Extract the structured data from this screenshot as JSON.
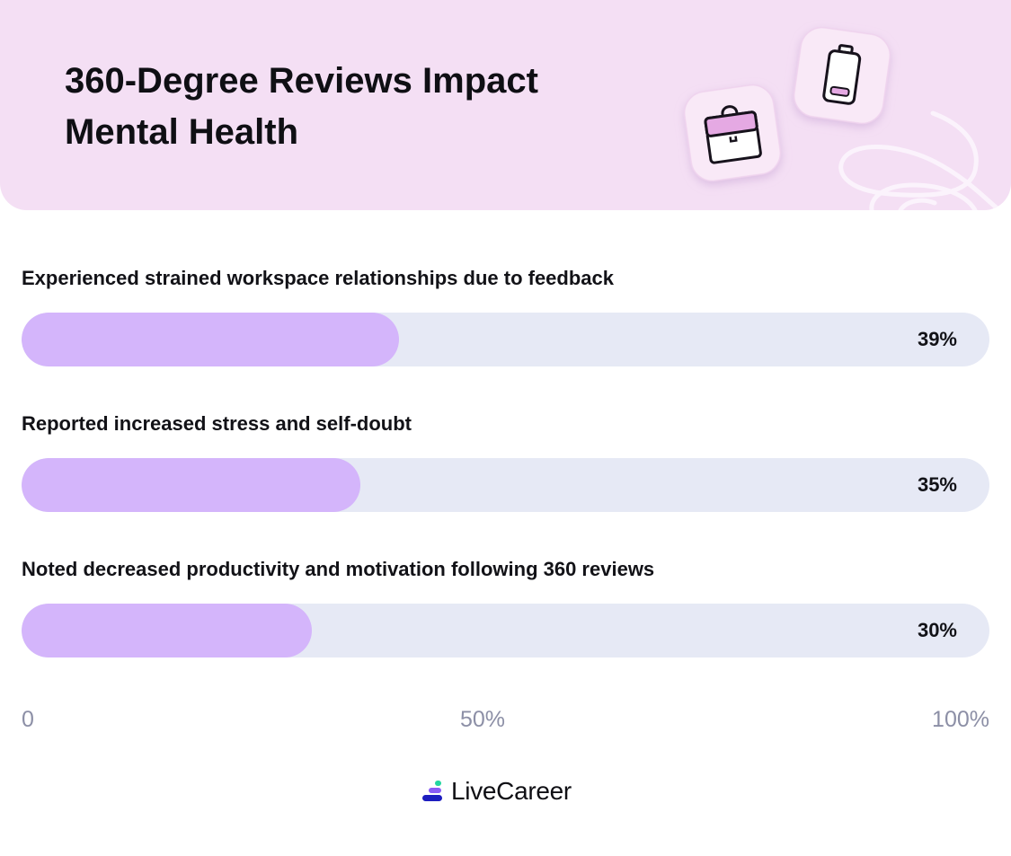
{
  "header": {
    "title_line1": "360-Degree Reviews Impact",
    "title_line2": "Mental Health"
  },
  "chart_data": {
    "type": "bar",
    "orientation": "horizontal",
    "title": "360-Degree Reviews Impact Mental Health",
    "categories": [
      "Experienced strained workspace relationships due to feedback",
      "Reported increased stress and self-doubt",
      "Noted decreased productivity and motivation following 360 reviews"
    ],
    "values": [
      39,
      35,
      30
    ],
    "value_labels": [
      "39%",
      "35%",
      "30%"
    ],
    "xlim": [
      0,
      100
    ],
    "x_ticks": [
      "0",
      "50%",
      "100%"
    ],
    "grid": false,
    "colors": {
      "fill": "#d4b5fb",
      "track": "#e6e9f5",
      "header_bg": "#f4dff4"
    }
  },
  "icons": [
    "briefcase-icon",
    "battery-low-icon",
    "scribble-decoration"
  ],
  "brand": {
    "name": "LiveCareer",
    "logo_icon": "livecareer-logo-icon"
  }
}
